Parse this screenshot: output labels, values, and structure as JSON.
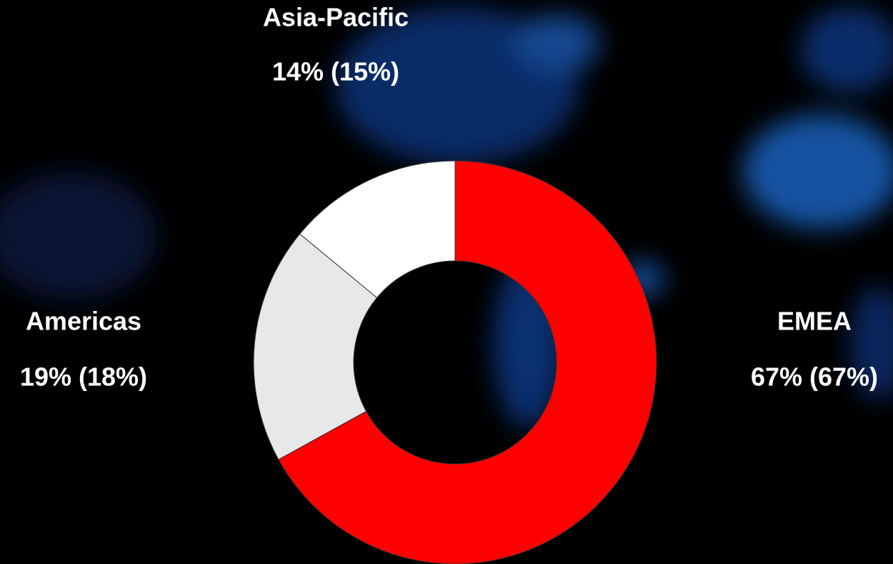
{
  "chart_data": {
    "type": "pie",
    "donut": true,
    "categories": [
      "EMEA",
      "Americas",
      "Asia-Pacific"
    ],
    "values": [
      67,
      19,
      14
    ],
    "value_labels": [
      "67% (67%)",
      "19% (18%)",
      "14% (15%)"
    ],
    "colors": [
      "#ff0000",
      "#e8e8e8",
      "#ffffff"
    ]
  }
}
